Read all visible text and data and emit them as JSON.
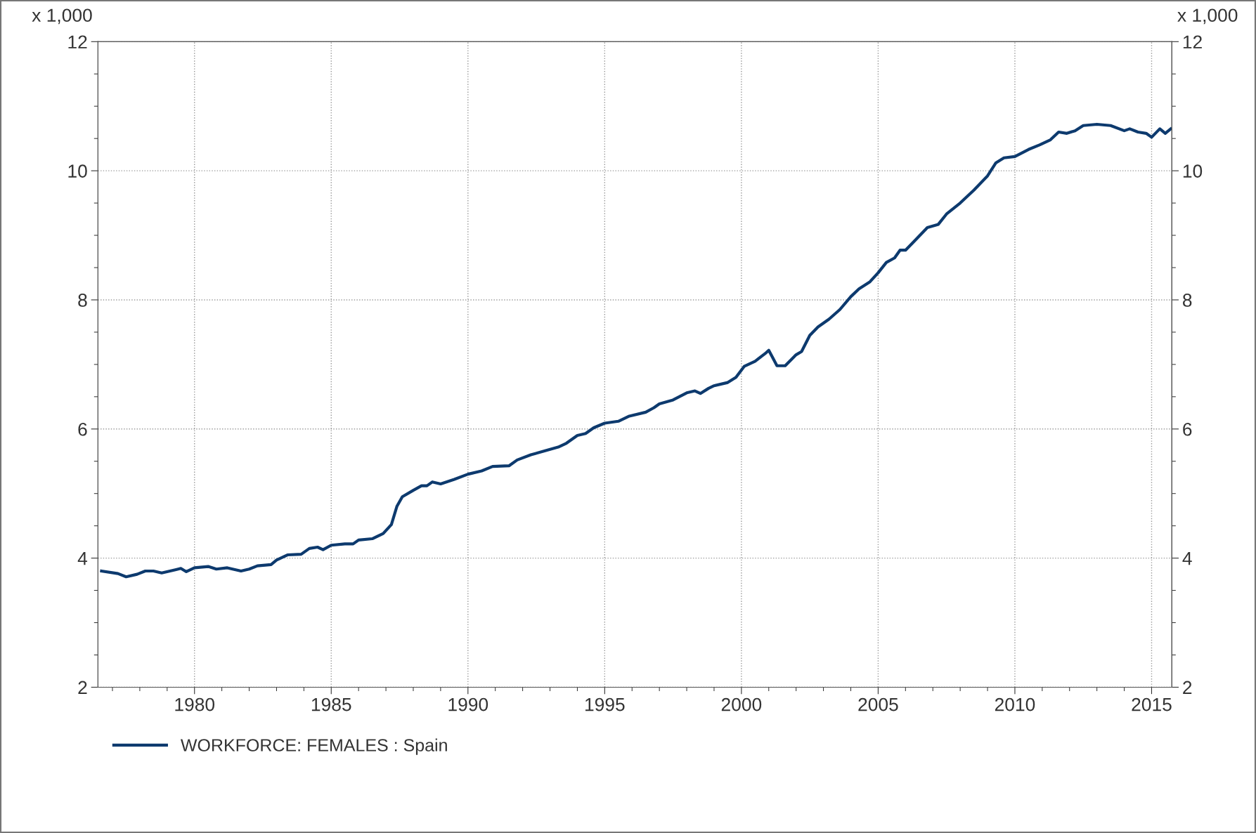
{
  "chart_data": {
    "type": "line",
    "ylabel": "x 1,000",
    "y2label": "x 1,000",
    "x": [
      1976.6,
      1977.2,
      1977.5,
      1977.9,
      1978.2,
      1978.5,
      1978.8,
      1979.3,
      1979.5,
      1979.7,
      1980.0,
      1980.5,
      1980.8,
      1981.2,
      1981.7,
      1982.0,
      1982.3,
      1982.8,
      1983.0,
      1983.4,
      1983.9,
      1984.2,
      1984.5,
      1984.7,
      1985.0,
      1985.5,
      1985.8,
      1986.0,
      1986.5,
      1986.9,
      1987.2,
      1987.4,
      1987.6,
      1988.0,
      1988.3,
      1988.5,
      1988.7,
      1989.0,
      1989.5,
      1990.0,
      1990.5,
      1990.9,
      1991.5,
      1991.8,
      1992.3,
      1992.8,
      1993.3,
      1993.6,
      1994.0,
      1994.3,
      1994.6,
      1995.0,
      1995.5,
      1995.9,
      1996.5,
      1996.8,
      1997.0,
      1997.5,
      1998.0,
      1998.3,
      1998.5,
      1998.8,
      1999.0,
      1999.5,
      1999.8,
      2000.1,
      2000.5,
      2000.9,
      2001.0,
      2001.3,
      2001.6,
      2002.0,
      2002.2,
      2002.5,
      2002.8,
      2003.2,
      2003.6,
      2004.0,
      2004.3,
      2004.7,
      2005.0,
      2005.3,
      2005.6,
      2005.8,
      2006.0,
      2006.3,
      2006.8,
      2007.2,
      2007.5,
      2008.0,
      2008.5,
      2009.0,
      2009.3,
      2009.6,
      2010.0,
      2010.5,
      2010.9,
      2011.3,
      2011.6,
      2011.9,
      2012.2,
      2012.5,
      2013.0,
      2013.5,
      2014.0,
      2014.2,
      2014.5,
      2014.8,
      2015.0,
      2015.3,
      2015.5,
      2015.7
    ],
    "series": [
      {
        "name": "WORKFORCE: FEMALES : Spain",
        "color": "#0d3a6e",
        "values": [
          3.8,
          3.76,
          3.71,
          3.75,
          3.8,
          3.8,
          3.77,
          3.82,
          3.84,
          3.79,
          3.85,
          3.87,
          3.83,
          3.85,
          3.8,
          3.83,
          3.88,
          3.9,
          3.97,
          4.05,
          4.06,
          4.15,
          4.17,
          4.13,
          4.2,
          4.22,
          4.22,
          4.28,
          4.3,
          4.38,
          4.52,
          4.8,
          4.95,
          5.05,
          5.12,
          5.12,
          5.18,
          5.15,
          5.22,
          5.3,
          5.35,
          5.42,
          5.43,
          5.52,
          5.6,
          5.66,
          5.72,
          5.78,
          5.9,
          5.93,
          6.02,
          6.09,
          6.12,
          6.2,
          6.26,
          6.33,
          6.39,
          6.45,
          6.56,
          6.59,
          6.55,
          6.63,
          6.67,
          6.72,
          6.8,
          6.97,
          7.05,
          7.18,
          7.22,
          6.98,
          6.98,
          7.15,
          7.2,
          7.45,
          7.58,
          7.7,
          7.85,
          8.05,
          8.17,
          8.28,
          8.42,
          8.58,
          8.65,
          8.77,
          8.77,
          8.9,
          9.12,
          9.17,
          9.33,
          9.5,
          9.7,
          9.92,
          10.12,
          10.2,
          10.22,
          10.33,
          10.4,
          10.48,
          10.6,
          10.58,
          10.62,
          10.7,
          10.72,
          10.7,
          10.62,
          10.65,
          10.6,
          10.58,
          10.52,
          10.65,
          10.58,
          10.65
        ]
      }
    ],
    "xlim": [
      1976.47,
      2015.74
    ],
    "xticks": [
      1980,
      1985,
      1990,
      1995,
      2000,
      2005,
      2010,
      2015
    ],
    "ylim": [
      2,
      12
    ],
    "yticks": [
      2,
      4,
      6,
      8,
      10,
      12
    ],
    "y2lim": [
      2,
      12
    ],
    "y2ticks": [
      2,
      4,
      6,
      8,
      10,
      12
    ],
    "grid": true,
    "legend": "bottom left",
    "line_style": "solid",
    "marker": "none"
  }
}
